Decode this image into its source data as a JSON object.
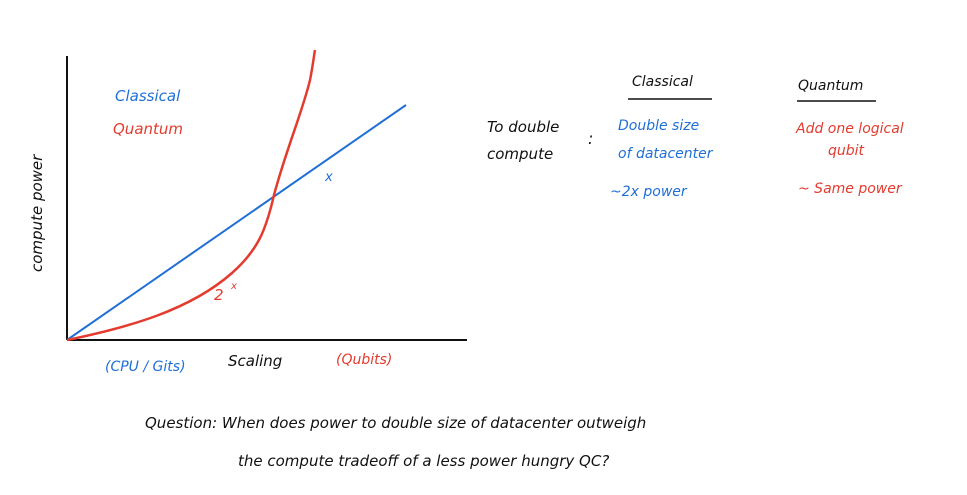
{
  "graph": {
    "y_axis_label": "compute power",
    "x_axis_label": "Scaling",
    "x_axis_classical_label": "(CPU / Gits)",
    "x_axis_quantum_label": "(Qubits)",
    "legend_classical": "Classical",
    "legend_quantum": "Quantum",
    "mark_classical": "x",
    "mark_quantum_base": "2",
    "mark_quantum_exp": "x",
    "colors": {
      "classical": "#1f6fd6",
      "quantum": "#e43b2f",
      "ink": "#111111"
    }
  },
  "comparison": {
    "header_classical": "Classical",
    "header_quantum": "Quantum",
    "row_label_line1": "To double",
    "row_label_line2": "compute",
    "separator": ":",
    "classical_line1": "Double size",
    "classical_line2": "of datacenter",
    "classical_power": "~2x power",
    "quantum_line1": "Add one logical",
    "quantum_line2": "qubit",
    "quantum_power": "~ Same power"
  },
  "question": {
    "line1": "Question: When does power to double size of datacenter outweigh",
    "line2": "the compute tradeoff of a less power hungry QC?"
  }
}
